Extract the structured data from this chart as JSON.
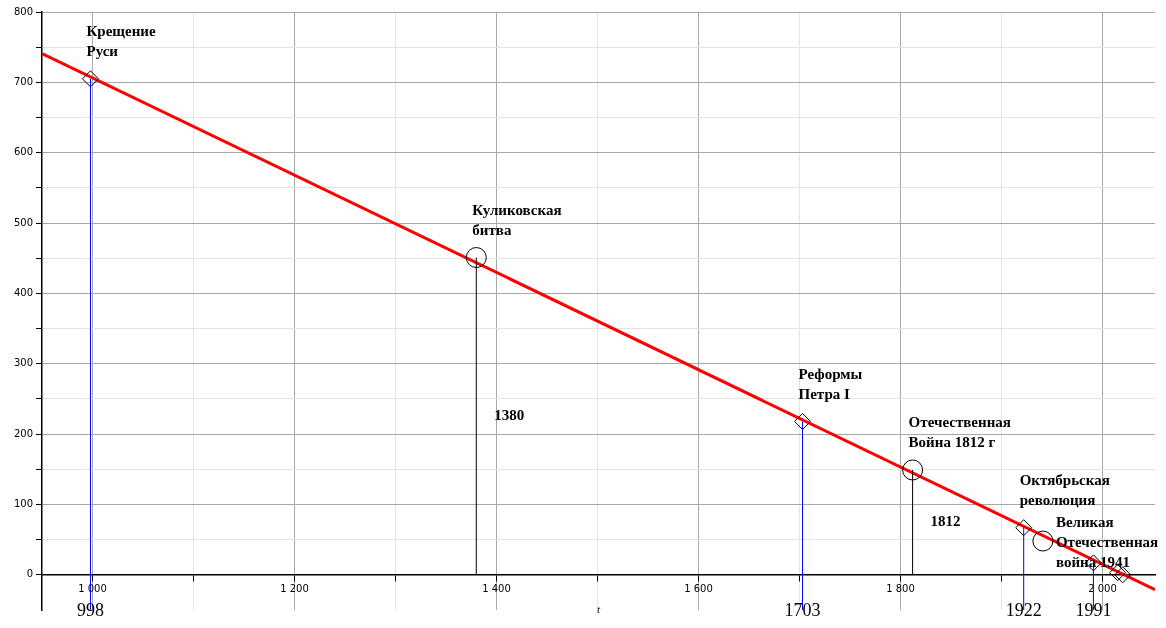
{
  "chart_data": {
    "type": "scatter",
    "xlabel": "t",
    "xlim": [
      950,
      2052
    ],
    "ylim": [
      -50,
      800
    ],
    "xticks": [
      {
        "value": 1000,
        "label": "1 000"
      },
      {
        "value": 1100,
        "label": null
      },
      {
        "value": 1200,
        "label": "1 200"
      },
      {
        "value": 1300,
        "label": null
      },
      {
        "value": 1400,
        "label": "1 400"
      },
      {
        "value": 1500,
        "label": null
      },
      {
        "value": 1600,
        "label": "1 600"
      },
      {
        "value": 1700,
        "label": null
      },
      {
        "value": 1800,
        "label": "1 800"
      },
      {
        "value": 1900,
        "label": null
      },
      {
        "value": 2000,
        "label": "2 000"
      }
    ],
    "yticks": [
      0,
      {
        "value": 50,
        "label": null
      },
      100,
      {
        "value": 150,
        "label": null
      },
      200,
      {
        "value": 250,
        "label": null
      },
      300,
      {
        "value": 350,
        "label": null
      },
      400,
      {
        "value": 450,
        "label": null
      },
      500,
      {
        "value": 550,
        "label": null
      },
      600,
      {
        "value": 650,
        "label": null
      },
      700,
      {
        "value": 750,
        "label": null
      },
      800
    ],
    "grid": true,
    "legend": false,
    "series": [
      {
        "type": "line",
        "color": "#ff0000",
        "marker": "none",
        "line_style": "solid",
        "x": [
          950,
          2052
        ],
        "values": [
          741,
          -21
        ]
      },
      {
        "type": "scatter",
        "color": "#000000",
        "marker": "diamond",
        "x": [
          998,
          1703,
          1922,
          1991,
          2015,
          2020
        ],
        "values": [
          705,
          218,
          67,
          17,
          3,
          0
        ]
      },
      {
        "type": "scatter",
        "color": "#000000",
        "marker": "circle",
        "x": [
          1380,
          1812,
          1941
        ],
        "values": [
          451,
          149,
          48
        ]
      }
    ],
    "ref_lines": [
      {
        "axis": "x",
        "value": 998,
        "label": "998",
        "color": "#0000ff"
      },
      {
        "axis": "x",
        "value": 1703,
        "label": "1703",
        "color": "#0000ff"
      },
      {
        "axis": "x",
        "value": 1922,
        "label": "1922",
        "color": "#0000ff"
      },
      {
        "axis": "x",
        "value": 1991,
        "label": "1991",
        "color": "#0000ff"
      },
      {
        "axis": "x",
        "value": 1380,
        "label": "1380",
        "color": "#000000"
      },
      {
        "axis": "x",
        "value": 1812,
        "label": "1812",
        "color": "#000000"
      }
    ],
    "annotations": [
      {
        "text": "Крещение\nРуси",
        "x": 998,
        "y": 705
      },
      {
        "text": "Куликовская\nбитва",
        "x": 1380,
        "y": 451
      },
      {
        "text": "Реформы\nПетра I",
        "x": 1703,
        "y": 218
      },
      {
        "text": "Отечественная\nВойна 1812 г",
        "x": 1812,
        "y": 149
      },
      {
        "text": "Октябрьская\nреволюция",
        "x": 1922,
        "y": 67
      },
      {
        "text": "Великая\nОтечественная\nвойна 1941",
        "x": 1941,
        "y": 48
      }
    ]
  }
}
